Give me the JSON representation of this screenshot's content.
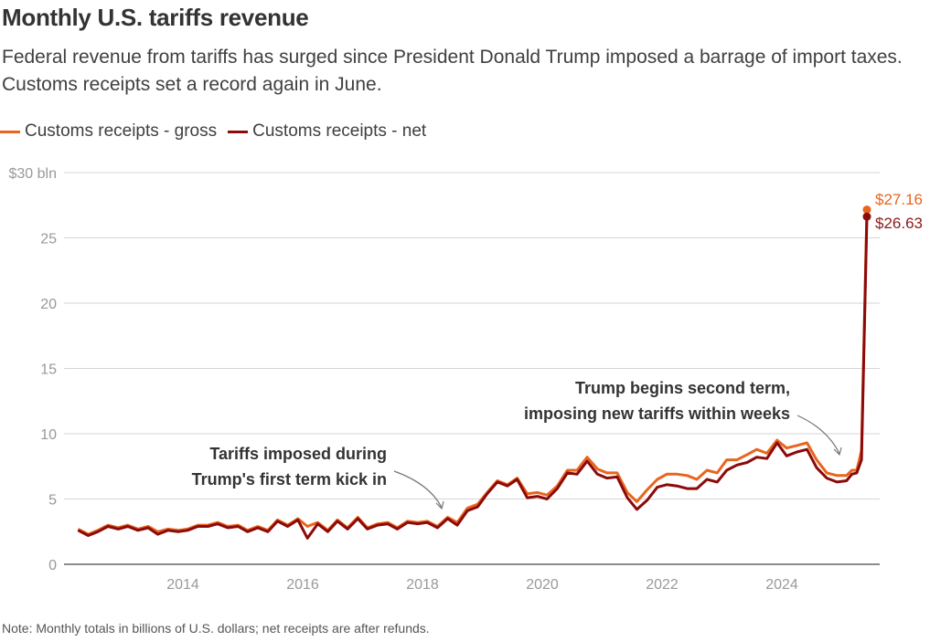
{
  "header": {
    "title": "Monthly U.S. tariffs revenue",
    "subtitle": "Federal revenue from tariffs has surged since President Donald Trump imposed a barrage of import taxes. Customs receipts set a record again in June."
  },
  "legend": [
    {
      "label": "Customs receipts - gross",
      "color": "#e8651e"
    },
    {
      "label": "Customs receipts - net",
      "color": "#8b0a0a"
    }
  ],
  "footer": {
    "note": "Note: Monthly totals in billions of U.S. dollars; net receipts are after refunds."
  },
  "chart_data": {
    "type": "line",
    "title": "Monthly U.S. tariffs revenue",
    "xlabel": "",
    "ylabel": "$ bln",
    "xlim": [
      2012.2,
      2025.9
    ],
    "ylim": [
      0,
      30
    ],
    "x_ticks": [
      2014,
      2016,
      2018,
      2020,
      2022,
      2024
    ],
    "x_tick_labels": [
      "2014",
      "2016",
      "2018",
      "2020",
      "2022",
      "2024"
    ],
    "y_ticks": [
      0,
      5,
      10,
      15,
      20,
      25,
      30
    ],
    "y_tick_labels": [
      "0",
      "5",
      "10",
      "15",
      "20",
      "25",
      "$30 bln"
    ],
    "grid": true,
    "legend_position": "top-left",
    "series": [
      {
        "name": "Customs receipts - gross",
        "color": "#e8651e",
        "points": [
          [
            2012.25,
            2.7
          ],
          [
            2012.42,
            2.3
          ],
          [
            2012.58,
            2.6
          ],
          [
            2012.75,
            3.0
          ],
          [
            2012.92,
            2.8
          ],
          [
            2013.08,
            3.0
          ],
          [
            2013.25,
            2.7
          ],
          [
            2013.42,
            2.9
          ],
          [
            2013.58,
            2.5
          ],
          [
            2013.75,
            2.7
          ],
          [
            2013.92,
            2.6
          ],
          [
            2014.08,
            2.7
          ],
          [
            2014.25,
            3.0
          ],
          [
            2014.42,
            3.0
          ],
          [
            2014.58,
            3.2
          ],
          [
            2014.75,
            2.9
          ],
          [
            2014.92,
            3.0
          ],
          [
            2015.08,
            2.6
          ],
          [
            2015.25,
            2.9
          ],
          [
            2015.42,
            2.6
          ],
          [
            2015.58,
            3.4
          ],
          [
            2015.75,
            3.0
          ],
          [
            2015.92,
            3.5
          ],
          [
            2016.08,
            2.9
          ],
          [
            2016.25,
            3.2
          ],
          [
            2016.42,
            2.6
          ],
          [
            2016.58,
            3.4
          ],
          [
            2016.75,
            2.8
          ],
          [
            2016.92,
            3.6
          ],
          [
            2017.08,
            2.8
          ],
          [
            2017.25,
            3.1
          ],
          [
            2017.42,
            3.2
          ],
          [
            2017.58,
            2.8
          ],
          [
            2017.75,
            3.3
          ],
          [
            2017.92,
            3.2
          ],
          [
            2018.08,
            3.3
          ],
          [
            2018.25,
            2.9
          ],
          [
            2018.42,
            3.6
          ],
          [
            2018.58,
            3.2
          ],
          [
            2018.75,
            4.3
          ],
          [
            2018.92,
            4.6
          ],
          [
            2019.08,
            5.5
          ],
          [
            2019.25,
            6.4
          ],
          [
            2019.42,
            6.1
          ],
          [
            2019.58,
            6.6
          ],
          [
            2019.75,
            5.4
          ],
          [
            2019.92,
            5.5
          ],
          [
            2020.08,
            5.3
          ],
          [
            2020.25,
            6.0
          ],
          [
            2020.42,
            7.2
          ],
          [
            2020.58,
            7.2
          ],
          [
            2020.75,
            8.2
          ],
          [
            2020.92,
            7.3
          ],
          [
            2021.08,
            7.0
          ],
          [
            2021.25,
            7.0
          ],
          [
            2021.42,
            5.5
          ],
          [
            2021.58,
            4.8
          ],
          [
            2021.75,
            5.7
          ],
          [
            2021.92,
            6.5
          ],
          [
            2022.08,
            6.9
          ],
          [
            2022.25,
            6.9
          ],
          [
            2022.42,
            6.8
          ],
          [
            2022.58,
            6.5
          ],
          [
            2022.75,
            7.2
          ],
          [
            2022.92,
            7.0
          ],
          [
            2023.08,
            8.0
          ],
          [
            2023.25,
            8.0
          ],
          [
            2023.42,
            8.4
          ],
          [
            2023.58,
            8.8
          ],
          [
            2023.75,
            8.5
          ],
          [
            2023.92,
            9.5
          ],
          [
            2024.08,
            8.9
          ],
          [
            2024.25,
            9.1
          ],
          [
            2024.42,
            9.3
          ],
          [
            2024.58,
            8.0
          ],
          [
            2024.75,
            7.0
          ],
          [
            2024.92,
            6.8
          ],
          [
            2025.08,
            6.8
          ],
          [
            2025.17,
            7.2
          ],
          [
            2025.25,
            7.2
          ],
          [
            2025.33,
            8.7
          ],
          [
            2025.42,
            27.16
          ]
        ]
      },
      {
        "name": "Customs receipts - net",
        "color": "#8b0a0a",
        "points": [
          [
            2012.25,
            2.6
          ],
          [
            2012.42,
            2.2
          ],
          [
            2012.58,
            2.5
          ],
          [
            2012.75,
            2.9
          ],
          [
            2012.92,
            2.7
          ],
          [
            2013.08,
            2.9
          ],
          [
            2013.25,
            2.6
          ],
          [
            2013.42,
            2.8
          ],
          [
            2013.58,
            2.3
          ],
          [
            2013.75,
            2.6
          ],
          [
            2013.92,
            2.5
          ],
          [
            2014.08,
            2.6
          ],
          [
            2014.25,
            2.9
          ],
          [
            2014.42,
            2.9
          ],
          [
            2014.58,
            3.1
          ],
          [
            2014.75,
            2.8
          ],
          [
            2014.92,
            2.9
          ],
          [
            2015.08,
            2.5
          ],
          [
            2015.25,
            2.8
          ],
          [
            2015.42,
            2.5
          ],
          [
            2015.58,
            3.3
          ],
          [
            2015.75,
            2.9
          ],
          [
            2015.92,
            3.4
          ],
          [
            2016.08,
            2.0
          ],
          [
            2016.25,
            3.1
          ],
          [
            2016.42,
            2.5
          ],
          [
            2016.58,
            3.3
          ],
          [
            2016.75,
            2.7
          ],
          [
            2016.92,
            3.5
          ],
          [
            2017.08,
            2.7
          ],
          [
            2017.25,
            3.0
          ],
          [
            2017.42,
            3.1
          ],
          [
            2017.58,
            2.7
          ],
          [
            2017.75,
            3.2
          ],
          [
            2017.92,
            3.1
          ],
          [
            2018.08,
            3.2
          ],
          [
            2018.25,
            2.8
          ],
          [
            2018.42,
            3.5
          ],
          [
            2018.58,
            3.0
          ],
          [
            2018.75,
            4.1
          ],
          [
            2018.92,
            4.4
          ],
          [
            2019.08,
            5.4
          ],
          [
            2019.25,
            6.3
          ],
          [
            2019.42,
            6.0
          ],
          [
            2019.58,
            6.5
          ],
          [
            2019.75,
            5.1
          ],
          [
            2019.92,
            5.2
          ],
          [
            2020.08,
            5.0
          ],
          [
            2020.25,
            5.8
          ],
          [
            2020.42,
            7.0
          ],
          [
            2020.58,
            6.9
          ],
          [
            2020.75,
            7.9
          ],
          [
            2020.92,
            6.9
          ],
          [
            2021.08,
            6.6
          ],
          [
            2021.25,
            6.7
          ],
          [
            2021.42,
            5.1
          ],
          [
            2021.58,
            4.2
          ],
          [
            2021.75,
            4.9
          ],
          [
            2021.92,
            5.9
          ],
          [
            2022.08,
            6.1
          ],
          [
            2022.25,
            6.0
          ],
          [
            2022.42,
            5.8
          ],
          [
            2022.58,
            5.8
          ],
          [
            2022.75,
            6.5
          ],
          [
            2022.92,
            6.3
          ],
          [
            2023.08,
            7.2
          ],
          [
            2023.25,
            7.6
          ],
          [
            2023.42,
            7.8
          ],
          [
            2023.58,
            8.2
          ],
          [
            2023.75,
            8.1
          ],
          [
            2023.92,
            9.3
          ],
          [
            2024.08,
            8.3
          ],
          [
            2024.25,
            8.6
          ],
          [
            2024.42,
            8.8
          ],
          [
            2024.58,
            7.4
          ],
          [
            2024.75,
            6.6
          ],
          [
            2024.92,
            6.3
          ],
          [
            2025.08,
            6.4
          ],
          [
            2025.17,
            6.9
          ],
          [
            2025.25,
            7.0
          ],
          [
            2025.33,
            8.0
          ],
          [
            2025.42,
            26.63
          ]
        ]
      }
    ],
    "end_labels": [
      {
        "series": "Customs receipts - gross",
        "value": 27.16,
        "text": "$27.16",
        "color": "#e8651e"
      },
      {
        "series": "Customs receipts - net",
        "value": 26.63,
        "text": "$26.63",
        "color": "#8b1a1a"
      }
    ],
    "annotations": [
      {
        "lines": [
          "Tariffs imposed during",
          "Trump's first term kick in"
        ],
        "target": [
          2018.5,
          4.2
        ]
      },
      {
        "lines": [
          "Trump begins second term,",
          "imposing new tariffs within weeks"
        ],
        "target": [
          2025.1,
          8.3
        ]
      }
    ]
  }
}
